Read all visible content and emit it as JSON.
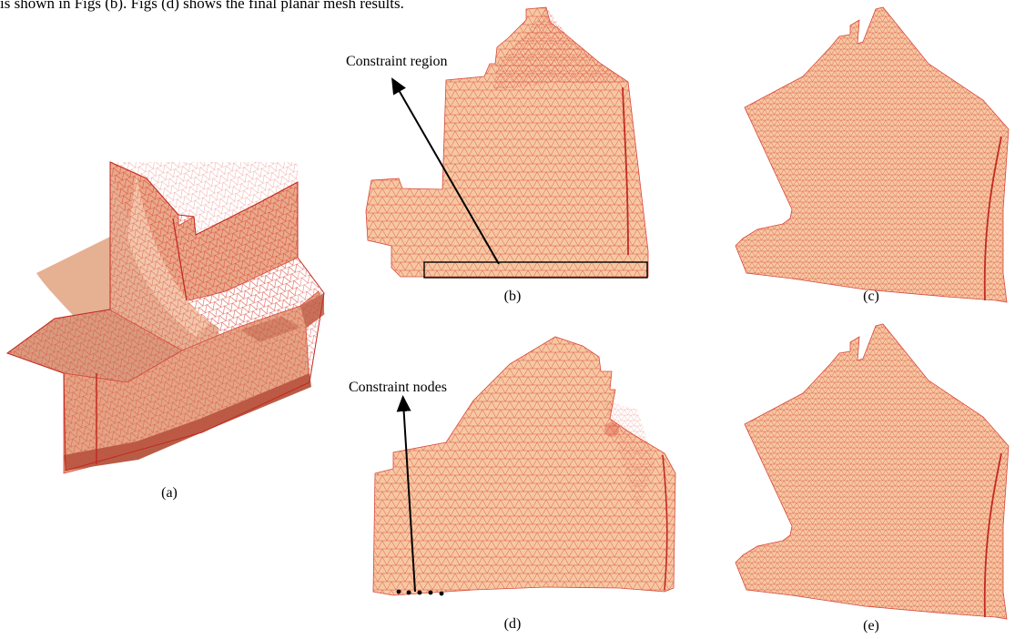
{
  "header_text": "is shown in Figs (b). Figs (d) shows the final planar mesh results.",
  "panels": [
    {
      "id": "a",
      "caption": "(a)"
    },
    {
      "id": "b",
      "caption": "(b)"
    },
    {
      "id": "c",
      "caption": "(c)"
    },
    {
      "id": "d",
      "caption": "(d)"
    },
    {
      "id": "e",
      "caption": "(e)"
    }
  ],
  "annotations": {
    "constraint_region": "Constraint region",
    "constraint_nodes": "Constraint nodes"
  },
  "colors": {
    "mesh_fill": "#f6c8a2",
    "mesh_fill_dark": "#d88f70",
    "mesh_line": "#d9473a",
    "seam_line": "#c22a20"
  }
}
